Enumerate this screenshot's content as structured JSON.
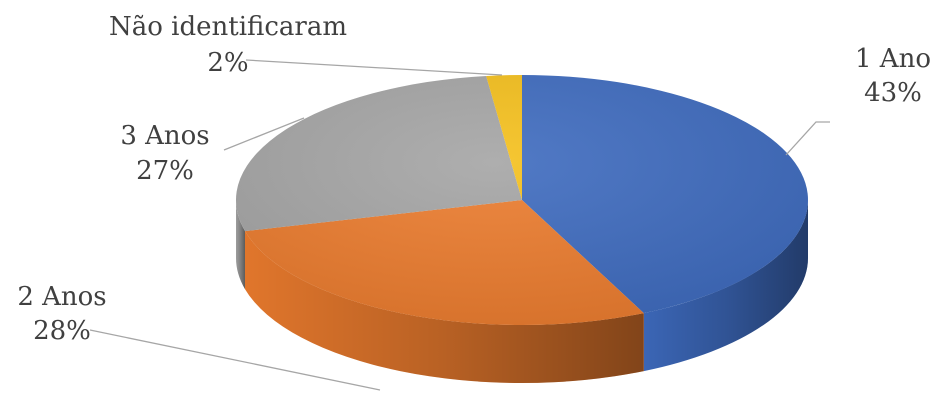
{
  "chart_data": {
    "type": "pie",
    "title": "",
    "legend": "none",
    "slices": [
      {
        "category": "1 Ano",
        "percent_label": "43%",
        "value": 43,
        "color": "#3e6bbf"
      },
      {
        "category": "2 Anos",
        "percent_label": "28%",
        "value": 28,
        "color": "#ec7c2e"
      },
      {
        "category": "3 Anos",
        "percent_label": "27%",
        "value": 27,
        "color": "#a5a5a5"
      },
      {
        "category": "Não identificaram",
        "percent_label": "2%",
        "value": 2,
        "color": "#f5c01c"
      }
    ]
  }
}
